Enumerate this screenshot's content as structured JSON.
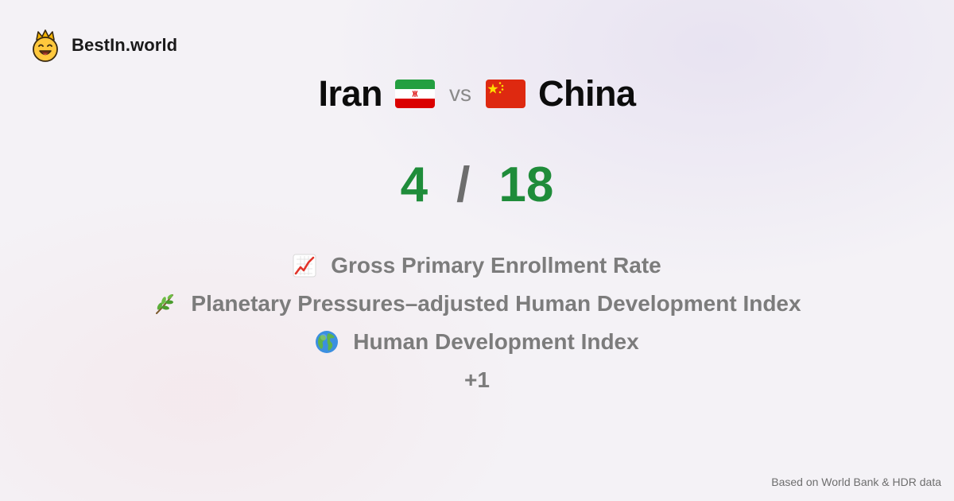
{
  "brand": {
    "name": "BestIn.world",
    "logo_icon": "crowned-smiley-icon"
  },
  "matchup": {
    "left_country": "Iran",
    "left_flag_icon": "iran-flag-icon",
    "vs_label": "vs",
    "right_country": "China",
    "right_flag_icon": "china-flag-icon"
  },
  "score": {
    "left": "4",
    "separator": "/",
    "right": "18",
    "color": "#1f8c3a"
  },
  "wins": [
    {
      "icon": "chart-increasing-icon",
      "label": "Gross Primary Enrollment Rate"
    },
    {
      "icon": "herb-icon",
      "label": "Planetary Pressures–adjusted Human Development Index"
    },
    {
      "icon": "globe-icon",
      "label": "Human Development Index"
    }
  ],
  "more_label": "+1",
  "footer": "Based on World Bank & HDR data"
}
